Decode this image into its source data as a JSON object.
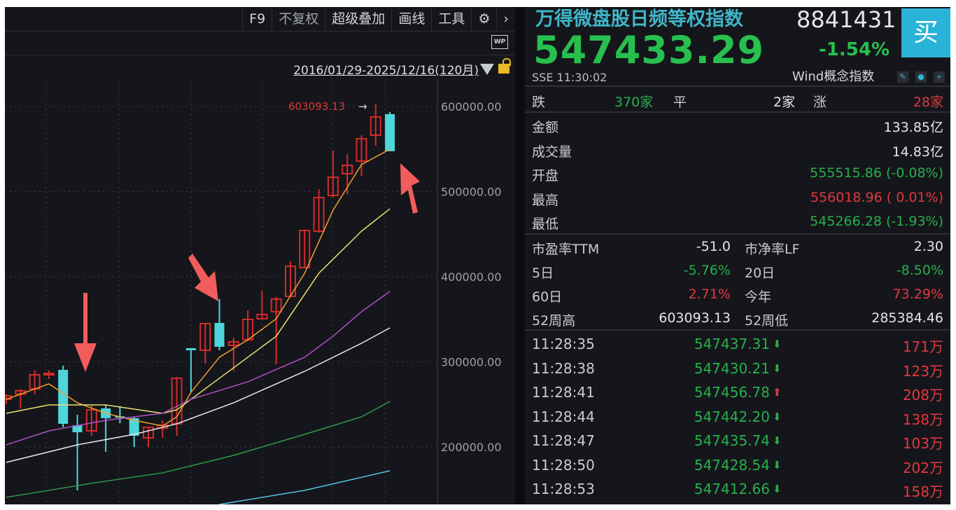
{
  "toolbar": {
    "f9": "F9",
    "no_adjust": "不复权",
    "overlay": "超级叠加",
    "draw": "画线",
    "tools": "工具",
    "wp": "WP"
  },
  "range": {
    "label": "2016/01/29-2025/12/16(120月)"
  },
  "quote": {
    "name": "万得微盘股日频等权指数",
    "code": "8841431",
    "buy": "买",
    "price": "547433.29",
    "change_pct": "-1.54%",
    "exchange_time": "SSE  11:30:02",
    "concept": "Wind概念指数"
  },
  "breadth": {
    "down_label": "跌",
    "down": "370家",
    "flat_label": "平",
    "flat": "2家",
    "up_label": "涨",
    "up": "28家"
  },
  "stats": [
    {
      "label": "金额",
      "value": "133.85亿",
      "color": "#e4e6ea"
    },
    {
      "label": "成交量",
      "value": "14.83亿",
      "color": "#e4e6ea"
    },
    {
      "label": "开盘",
      "value": "555515.86 (-0.08%)",
      "color": "#27b04b"
    },
    {
      "label": "最高",
      "value": "556018.96 ( 0.01%)",
      "color": "#e0393e"
    },
    {
      "label": "最低",
      "value": "545266.28 (-1.93%)",
      "color": "#27b04b"
    }
  ],
  "metrics": [
    {
      "l1": "市盈率TTM",
      "v1": "-51.0",
      "c1": "#e4e6ea",
      "l2": "市净率LF",
      "v2": "2.30",
      "c2": "#e4e6ea"
    },
    {
      "l1": "5日",
      "v1": "-5.76%",
      "c1": "#27b04b",
      "l2": "20日",
      "v2": "-8.50%",
      "c2": "#27b04b"
    },
    {
      "l1": "60日",
      "v1": "2.71%",
      "c1": "#e0393e",
      "l2": "今年",
      "v2": "73.29%",
      "c2": "#e0393e"
    },
    {
      "l1": "52周高",
      "v1": "603093.13",
      "c1": "#e4e6ea",
      "l2": "52周低",
      "v2": "285384.46",
      "c2": "#e4e6ea"
    }
  ],
  "ticks": [
    {
      "time": "11:28:35",
      "price": "547437.31",
      "dir": "down",
      "vol": "171万"
    },
    {
      "time": "11:28:38",
      "price": "547430.21",
      "dir": "down",
      "vol": "123万"
    },
    {
      "time": "11:28:41",
      "price": "547456.78",
      "dir": "up",
      "vol": "208万"
    },
    {
      "time": "11:28:44",
      "price": "547442.20",
      "dir": "down",
      "vol": "138万"
    },
    {
      "time": "11:28:47",
      "price": "547435.74",
      "dir": "down",
      "vol": "103万"
    },
    {
      "time": "11:28:50",
      "price": "547428.54",
      "dir": "down",
      "vol": "202万"
    },
    {
      "time": "11:28:53",
      "price": "547412.66",
      "dir": "down",
      "vol": "158万"
    }
  ],
  "chart_data": {
    "type": "candlestick",
    "period": "monthly",
    "ylim": [
      130000,
      640000
    ],
    "yticks": [
      "600000.00",
      "500000.00",
      "400000.00",
      "300000.00",
      "200000.00"
    ],
    "ytick_values": [
      600000,
      500000,
      400000,
      300000,
      200000
    ],
    "high_label": "603093.13",
    "up_color": "#d42a2a",
    "down_color": "#4dd6dc",
    "candles": [
      [
        256000,
        262000,
        250000,
        260000
      ],
      [
        262000,
        268000,
        245000,
        266000
      ],
      [
        268300,
        290000,
        262000,
        284800
      ],
      [
        285000,
        290000,
        280000,
        286400
      ],
      [
        290600,
        295500,
        223000,
        227200
      ],
      [
        225500,
        237900,
        149000,
        217300
      ],
      [
        218900,
        249400,
        213200,
        243600
      ],
      [
        245300,
        249400,
        194300,
        233800
      ],
      [
        236000,
        248000,
        228000,
        235000
      ],
      [
        233800,
        235400,
        200000,
        213200
      ],
      [
        210700,
        223100,
        200000,
        223100
      ],
      [
        222000,
        231300,
        210700,
        225500
      ],
      [
        227200,
        282400,
        213200,
        280700
      ],
      [
        316100,
        316100,
        264200,
        313600
      ],
      [
        313600,
        345000,
        298000,
        344900
      ],
      [
        345700,
        373700,
        313600,
        317700
      ],
      [
        319400,
        328400,
        289000,
        323500
      ],
      [
        326000,
        360500,
        324300,
        349800
      ],
      [
        350600,
        383600,
        350000,
        355600
      ],
      [
        358900,
        376200,
        297100,
        373700
      ],
      [
        377000,
        418100,
        377000,
        412400
      ],
      [
        410700,
        454300,
        410700,
        454300
      ],
      [
        453500,
        502900,
        451900,
        493000
      ],
      [
        495500,
        548100,
        493000,
        516900
      ],
      [
        521000,
        544000,
        497000,
        530900
      ],
      [
        535800,
        566300,
        518000,
        562100
      ],
      [
        566300,
        603093.13,
        553900,
        587700
      ],
      [
        591000,
        593400,
        547433.29,
        547433.29
      ]
    ],
    "moving_averages": [
      {
        "color": "#f0a030",
        "points": [
          [
            0,
            256000
          ],
          [
            3,
            274100
          ],
          [
            5,
            251900
          ],
          [
            7,
            239500
          ],
          [
            9,
            231300
          ],
          [
            11,
            224700
          ],
          [
            12,
            235400
          ],
          [
            13,
            264200
          ],
          [
            15,
            305400
          ],
          [
            17,
            325900
          ],
          [
            19,
            350600
          ],
          [
            21,
            404100
          ],
          [
            23,
            478200
          ],
          [
            25,
            531700
          ],
          [
            27,
            549800
          ]
        ]
      },
      {
        "color": "#e8e070",
        "points": [
          [
            0,
            239500
          ],
          [
            3,
            249400
          ],
          [
            7,
            249400
          ],
          [
            11,
            239500
          ],
          [
            12,
            243600
          ],
          [
            15,
            280700
          ],
          [
            19,
            330100
          ],
          [
            22,
            404100
          ],
          [
            25,
            453500
          ],
          [
            27,
            479800
          ]
        ]
      },
      {
        "color": "#b050c8",
        "points": [
          [
            0,
            202500
          ],
          [
            3,
            218900
          ],
          [
            7,
            231300
          ],
          [
            11,
            239500
          ],
          [
            13,
            256000
          ],
          [
            17,
            276600
          ],
          [
            21,
            305400
          ],
          [
            23,
            330100
          ],
          [
            25,
            358900
          ],
          [
            27,
            382700
          ]
        ]
      },
      {
        "color": "#e8e8ee",
        "points": [
          [
            0,
            181900
          ],
          [
            5,
            202500
          ],
          [
            9,
            214800
          ],
          [
            12,
            227200
          ],
          [
            16,
            251900
          ],
          [
            21,
            288900
          ],
          [
            25,
            321800
          ],
          [
            27,
            339900
          ]
        ]
      },
      {
        "color": "#2e9a4a",
        "points": [
          [
            0,
            140800
          ],
          [
            6,
            157300
          ],
          [
            11,
            169600
          ],
          [
            16,
            190100
          ],
          [
            21,
            214800
          ],
          [
            25,
            235400
          ],
          [
            27,
            253500
          ]
        ]
      },
      {
        "color": "#4fc6e0",
        "points": [
          [
            15,
            132500
          ],
          [
            21,
            149000
          ],
          [
            27,
            172000
          ]
        ]
      }
    ]
  }
}
